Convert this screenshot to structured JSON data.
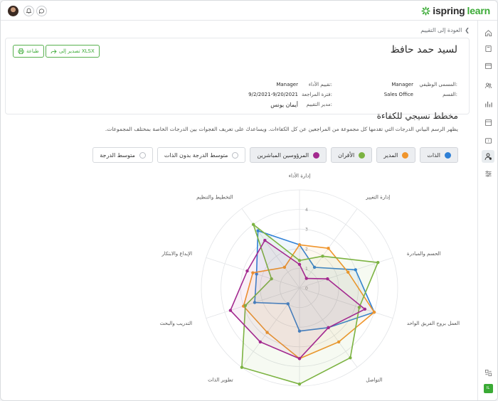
{
  "topbar": {
    "logo_prefix": "ispring",
    "logo_suffix": "learn",
    "colors": {
      "brand_green": "#3aaa35"
    },
    "icons": [
      "avatar",
      "bell-icon",
      "chat-icon"
    ]
  },
  "nav": {
    "icons": [
      "home-icon",
      "catalog-icon",
      "calendar-icon",
      "users-icon",
      "reports-icon",
      "content-icon",
      "feedback-icon",
      "assessment-icon",
      "settings-icon",
      "help-icon",
      "user-initial-icon"
    ],
    "active": "assessment-icon",
    "user_initial": "IL"
  },
  "breadcrumb": {
    "label": "العودة إلى التقييم"
  },
  "profile": {
    "name": "لسيد حمد حافظ",
    "fields": [
      {
        "label": "المسمى الوظيفي:",
        "value": "Manager"
      },
      {
        "label": "القسم:",
        "value": "Sales Office"
      },
      {
        "label": "تقييم الأداء:",
        "value": "Manager"
      },
      {
        "label": "فترة المراجعة:",
        "value": "9/2/2021-9/20/2021"
      },
      {
        "label": "مدير التقييم:",
        "value": "أيمان يونس"
      }
    ],
    "export_button": "تصدير إلى XLSX",
    "print_button": "طباعة"
  },
  "section": {
    "title": "مخطط نسيجي للكفاءة",
    "description": "يظهر الرسم البياني الدرجات التي تقدمها كل مجموعة من المراجعين عن كل الكفاءات. ويساعدك على تعريف الفجوات بين الدرجات الخاصة بمختلف المجموعات."
  },
  "filters": [
    {
      "label": "الذات",
      "color": "#2f80d6",
      "selected": true
    },
    {
      "label": "المدير",
      "color": "#f0952c",
      "selected": true
    },
    {
      "label": "الأقران",
      "color": "#7cb342",
      "selected": true
    },
    {
      "label": "المرؤوسين المباشرين",
      "color": "#a3298f",
      "selected": true
    },
    {
      "label": "متوسط الدرجة بدون الذات",
      "color": "",
      "selected": false
    },
    {
      "label": "متوسط الدرجة",
      "color": "",
      "selected": false
    }
  ],
  "chart_data": {
    "type": "radar",
    "title": "",
    "axes": [
      "إدارة الأداء",
      "إدارة التغيير",
      "الحسم والمبادرة",
      "العمل بروح الفريق الواحد",
      "التواصل",
      "",
      "تطوير الذات",
      "التدريب والبحث",
      "الإبداع والابتكار",
      "التخطيط والتنظيم"
    ],
    "rlim": [
      0,
      5
    ],
    "ticks": [
      0,
      1,
      2,
      3,
      4
    ],
    "grid": true,
    "series": [
      {
        "name": "الذات",
        "color": "#2f80d6",
        "values": [
          2.2,
          1.3,
          3.0,
          4.0,
          2.5,
          2.2,
          1.0,
          2.4,
          2.3,
          3.6
        ]
      },
      {
        "name": "المدير",
        "color": "#f0952c",
        "values": [
          2.2,
          2.5,
          2.6,
          4.0,
          3.4,
          3.6,
          2.8,
          3.0,
          2.5,
          1.3
        ]
      },
      {
        "name": "الأقران",
        "color": "#7cb342",
        "values": [
          1.4,
          2.0,
          4.2,
          3.2,
          4.4,
          4.9,
          5.0,
          2.9,
          1.5,
          4.0
        ]
      },
      {
        "name": "المرؤوسين المباشرين",
        "color": "#a3298f",
        "values": [
          1.2,
          0.6,
          1.5,
          3.5,
          2.5,
          3.6,
          3.4,
          3.7,
          2.8,
          3.0
        ]
      }
    ]
  }
}
